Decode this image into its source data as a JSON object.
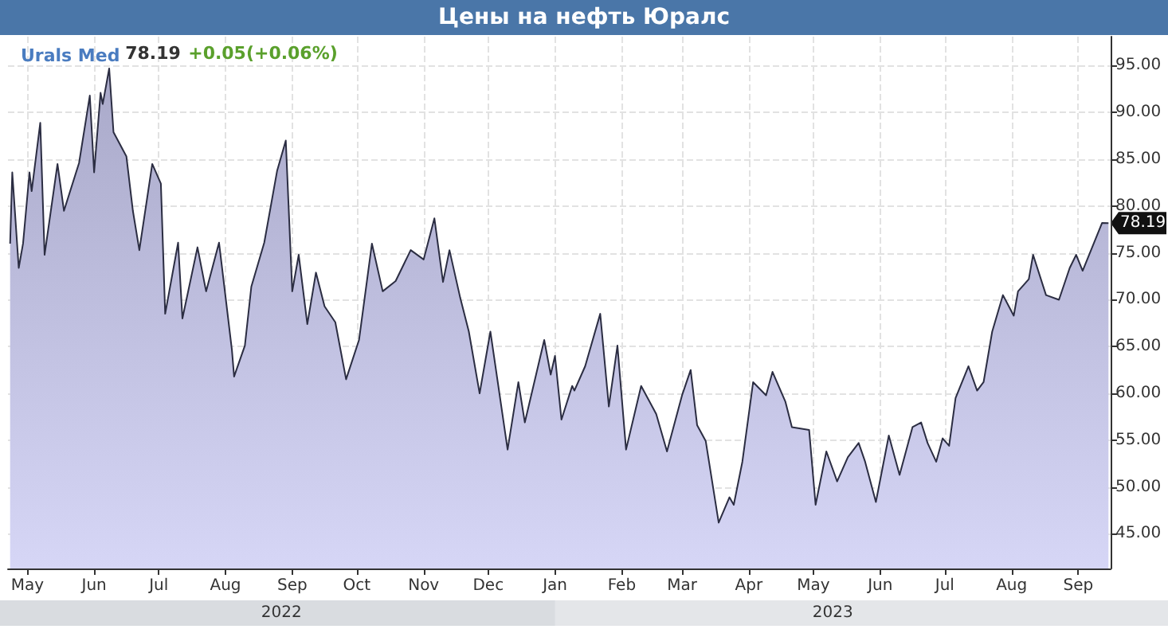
{
  "chart_data": {
    "type": "area",
    "title": "Цены на нефть Юралс",
    "annotations": [
      "78.19",
      "+0.05(+0.06%)",
      {
        "text": "78.19",
        "x": "2023-09-15",
        "y": 78.19
      },
      "2022",
      "2023"
    ],
    "series": [
      {
        "name": "Urals Med",
        "color": "#2b2d42",
        "x": [
          "2022-04-23",
          "2022-04-24",
          "2022-04-27",
          "2022-04-29",
          "2022-05-02",
          "2022-05-03",
          "2022-05-07",
          "2022-05-09",
          "2022-05-15",
          "2022-05-18",
          "2022-05-25",
          "2022-05-30",
          "2022-06-01",
          "2022-06-04",
          "2022-06-05",
          "2022-06-08",
          "2022-06-10",
          "2022-06-16",
          "2022-06-19",
          "2022-06-22",
          "2022-06-28",
          "2022-07-02",
          "2022-07-04",
          "2022-07-10",
          "2022-07-12",
          "2022-07-19",
          "2022-07-23",
          "2022-07-29",
          "2022-08-04",
          "2022-08-05",
          "2022-08-10",
          "2022-08-13",
          "2022-08-19",
          "2022-08-25",
          "2022-08-29",
          "2022-09-01",
          "2022-09-04",
          "2022-09-08",
          "2022-09-12",
          "2022-09-16",
          "2022-09-21",
          "2022-09-26",
          "2022-10-02",
          "2022-10-08",
          "2022-10-13",
          "2022-10-19",
          "2022-10-26",
          "2022-11-01",
          "2022-11-06",
          "2022-11-10",
          "2022-11-13",
          "2022-11-18",
          "2022-11-22",
          "2022-11-27",
          "2022-12-02",
          "2022-12-10",
          "2022-12-15",
          "2022-12-18",
          "2022-12-27",
          "2022-12-30",
          "2023-01-01",
          "2023-01-04",
          "2023-01-09",
          "2023-01-10",
          "2023-01-15",
          "2023-01-22",
          "2023-01-26",
          "2023-01-30",
          "2023-02-03",
          "2023-02-10",
          "2023-02-17",
          "2023-02-22",
          "2023-03-01",
          "2023-03-05",
          "2023-03-08",
          "2023-03-12",
          "2023-03-18",
          "2023-03-23",
          "2023-03-25",
          "2023-03-29",
          "2023-04-03",
          "2023-04-09",
          "2023-04-12",
          "2023-04-18",
          "2023-04-21",
          "2023-04-29",
          "2023-05-02",
          "2023-05-07",
          "2023-05-12",
          "2023-05-17",
          "2023-05-22",
          "2023-05-25",
          "2023-05-30",
          "2023-06-05",
          "2023-06-10",
          "2023-06-16",
          "2023-06-20",
          "2023-06-23",
          "2023-06-27",
          "2023-06-30",
          "2023-07-03",
          "2023-07-06",
          "2023-07-12",
          "2023-07-16",
          "2023-07-19",
          "2023-07-23",
          "2023-07-28",
          "2023-08-02",
          "2023-08-04",
          "2023-08-09",
          "2023-08-11",
          "2023-08-17",
          "2023-08-23",
          "2023-08-28",
          "2023-08-31",
          "2023-09-03",
          "2023-09-12",
          "2023-09-15"
        ],
        "values": [
          76.0,
          83.6,
          73.4,
          76.0,
          83.6,
          81.6,
          88.9,
          74.8,
          84.5,
          79.5,
          84.6,
          91.8,
          83.6,
          92.1,
          90.9,
          94.7,
          87.9,
          85.3,
          79.5,
          75.3,
          84.5,
          82.4,
          68.5,
          76.1,
          68.0,
          75.6,
          70.9,
          76.1,
          64.6,
          61.8,
          65.1,
          71.4,
          76.1,
          83.8,
          87.0,
          70.9,
          74.8,
          67.4,
          72.9,
          69.3,
          67.6,
          61.5,
          65.7,
          76.0,
          70.9,
          72.0,
          75.3,
          74.3,
          78.7,
          71.9,
          75.3,
          70.2,
          66.6,
          60.0,
          66.6,
          54.0,
          61.2,
          56.9,
          65.7,
          62.0,
          64.0,
          57.2,
          60.8,
          60.3,
          62.9,
          68.5,
          58.6,
          65.1,
          54.0,
          60.8,
          57.8,
          53.8,
          59.8,
          62.5,
          56.6,
          54.9,
          46.2,
          48.9,
          48.1,
          52.7,
          61.2,
          59.8,
          62.3,
          59.1,
          56.4,
          56.1,
          48.1,
          53.8,
          50.6,
          53.2,
          54.7,
          52.7,
          48.4,
          55.5,
          51.3,
          56.4,
          56.9,
          54.7,
          52.7,
          55.2,
          54.4,
          59.5,
          62.9,
          60.3,
          61.2,
          66.6,
          70.5,
          68.3,
          70.9,
          72.2,
          74.8,
          70.5,
          70.0,
          73.4,
          74.8,
          73.1,
          78.2,
          78.19
        ]
      }
    ],
    "xlim": [
      "2022-04-22",
      "2023-09-16"
    ],
    "xticks": [
      {
        "value": "2022-05-01",
        "label": "May"
      },
      {
        "value": "2022-06-01",
        "label": "Jun"
      },
      {
        "value": "2022-07-01",
        "label": "Jul"
      },
      {
        "value": "2022-08-01",
        "label": "Aug"
      },
      {
        "value": "2022-09-01",
        "label": "Sep"
      },
      {
        "value": "2022-10-01",
        "label": "Oct"
      },
      {
        "value": "2022-11-01",
        "label": "Nov"
      },
      {
        "value": "2022-12-01",
        "label": "Dec"
      },
      {
        "value": "2023-01-01",
        "label": "Jan"
      },
      {
        "value": "2023-02-01",
        "label": "Feb"
      },
      {
        "value": "2023-03-01",
        "label": "Mar"
      },
      {
        "value": "2023-04-01",
        "label": "Apr"
      },
      {
        "value": "2023-05-01",
        "label": "May"
      },
      {
        "value": "2023-06-01",
        "label": "Jun"
      },
      {
        "value": "2023-07-01",
        "label": "Jul"
      },
      {
        "value": "2023-08-01",
        "label": "Aug"
      },
      {
        "value": "2023-09-01",
        "label": "Sep"
      }
    ],
    "ylim": [
      41.3,
      98.1
    ],
    "yticks": [
      {
        "value": 45,
        "label": "45.00"
      },
      {
        "value": 50,
        "label": "50.00"
      },
      {
        "value": 55,
        "label": "55.00"
      },
      {
        "value": 60,
        "label": "60.00"
      },
      {
        "value": 65,
        "label": "65.00"
      },
      {
        "value": 70,
        "label": "70.00"
      },
      {
        "value": 75,
        "label": "75.00"
      },
      {
        "value": 80,
        "label": "80.00"
      },
      {
        "value": 85,
        "label": "85.00"
      },
      {
        "value": 90,
        "label": "90.00"
      },
      {
        "value": 95,
        "label": "95.00"
      }
    ],
    "grid": true,
    "legend": "top left",
    "marker": "none",
    "line_style": "solid"
  }
}
